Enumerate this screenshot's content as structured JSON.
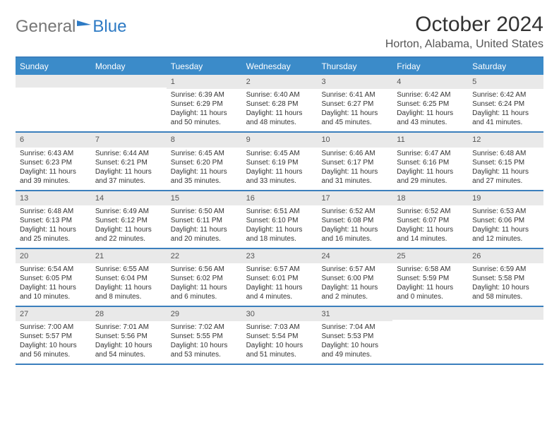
{
  "brand": {
    "part1": "General",
    "part2": "Blue"
  },
  "title": "October 2024",
  "location": "Horton, Alabama, United States",
  "colors": {
    "header_bg": "#3b8bc9",
    "header_text": "#ffffff",
    "border": "#3b7fbd",
    "daynum_bg": "#e9e9e9",
    "text": "#333333"
  },
  "day_headers": [
    "Sunday",
    "Monday",
    "Tuesday",
    "Wednesday",
    "Thursday",
    "Friday",
    "Saturday"
  ],
  "weeks": [
    [
      {
        "num": "",
        "sunrise": "",
        "sunset": "",
        "daylight": ""
      },
      {
        "num": "",
        "sunrise": "",
        "sunset": "",
        "daylight": ""
      },
      {
        "num": "1",
        "sunrise": "Sunrise: 6:39 AM",
        "sunset": "Sunset: 6:29 PM",
        "daylight": "Daylight: 11 hours and 50 minutes."
      },
      {
        "num": "2",
        "sunrise": "Sunrise: 6:40 AM",
        "sunset": "Sunset: 6:28 PM",
        "daylight": "Daylight: 11 hours and 48 minutes."
      },
      {
        "num": "3",
        "sunrise": "Sunrise: 6:41 AM",
        "sunset": "Sunset: 6:27 PM",
        "daylight": "Daylight: 11 hours and 45 minutes."
      },
      {
        "num": "4",
        "sunrise": "Sunrise: 6:42 AM",
        "sunset": "Sunset: 6:25 PM",
        "daylight": "Daylight: 11 hours and 43 minutes."
      },
      {
        "num": "5",
        "sunrise": "Sunrise: 6:42 AM",
        "sunset": "Sunset: 6:24 PM",
        "daylight": "Daylight: 11 hours and 41 minutes."
      }
    ],
    [
      {
        "num": "6",
        "sunrise": "Sunrise: 6:43 AM",
        "sunset": "Sunset: 6:23 PM",
        "daylight": "Daylight: 11 hours and 39 minutes."
      },
      {
        "num": "7",
        "sunrise": "Sunrise: 6:44 AM",
        "sunset": "Sunset: 6:21 PM",
        "daylight": "Daylight: 11 hours and 37 minutes."
      },
      {
        "num": "8",
        "sunrise": "Sunrise: 6:45 AM",
        "sunset": "Sunset: 6:20 PM",
        "daylight": "Daylight: 11 hours and 35 minutes."
      },
      {
        "num": "9",
        "sunrise": "Sunrise: 6:45 AM",
        "sunset": "Sunset: 6:19 PM",
        "daylight": "Daylight: 11 hours and 33 minutes."
      },
      {
        "num": "10",
        "sunrise": "Sunrise: 6:46 AM",
        "sunset": "Sunset: 6:17 PM",
        "daylight": "Daylight: 11 hours and 31 minutes."
      },
      {
        "num": "11",
        "sunrise": "Sunrise: 6:47 AM",
        "sunset": "Sunset: 6:16 PM",
        "daylight": "Daylight: 11 hours and 29 minutes."
      },
      {
        "num": "12",
        "sunrise": "Sunrise: 6:48 AM",
        "sunset": "Sunset: 6:15 PM",
        "daylight": "Daylight: 11 hours and 27 minutes."
      }
    ],
    [
      {
        "num": "13",
        "sunrise": "Sunrise: 6:48 AM",
        "sunset": "Sunset: 6:13 PM",
        "daylight": "Daylight: 11 hours and 25 minutes."
      },
      {
        "num": "14",
        "sunrise": "Sunrise: 6:49 AM",
        "sunset": "Sunset: 6:12 PM",
        "daylight": "Daylight: 11 hours and 22 minutes."
      },
      {
        "num": "15",
        "sunrise": "Sunrise: 6:50 AM",
        "sunset": "Sunset: 6:11 PM",
        "daylight": "Daylight: 11 hours and 20 minutes."
      },
      {
        "num": "16",
        "sunrise": "Sunrise: 6:51 AM",
        "sunset": "Sunset: 6:10 PM",
        "daylight": "Daylight: 11 hours and 18 minutes."
      },
      {
        "num": "17",
        "sunrise": "Sunrise: 6:52 AM",
        "sunset": "Sunset: 6:08 PM",
        "daylight": "Daylight: 11 hours and 16 minutes."
      },
      {
        "num": "18",
        "sunrise": "Sunrise: 6:52 AM",
        "sunset": "Sunset: 6:07 PM",
        "daylight": "Daylight: 11 hours and 14 minutes."
      },
      {
        "num": "19",
        "sunrise": "Sunrise: 6:53 AM",
        "sunset": "Sunset: 6:06 PM",
        "daylight": "Daylight: 11 hours and 12 minutes."
      }
    ],
    [
      {
        "num": "20",
        "sunrise": "Sunrise: 6:54 AM",
        "sunset": "Sunset: 6:05 PM",
        "daylight": "Daylight: 11 hours and 10 minutes."
      },
      {
        "num": "21",
        "sunrise": "Sunrise: 6:55 AM",
        "sunset": "Sunset: 6:04 PM",
        "daylight": "Daylight: 11 hours and 8 minutes."
      },
      {
        "num": "22",
        "sunrise": "Sunrise: 6:56 AM",
        "sunset": "Sunset: 6:02 PM",
        "daylight": "Daylight: 11 hours and 6 minutes."
      },
      {
        "num": "23",
        "sunrise": "Sunrise: 6:57 AM",
        "sunset": "Sunset: 6:01 PM",
        "daylight": "Daylight: 11 hours and 4 minutes."
      },
      {
        "num": "24",
        "sunrise": "Sunrise: 6:57 AM",
        "sunset": "Sunset: 6:00 PM",
        "daylight": "Daylight: 11 hours and 2 minutes."
      },
      {
        "num": "25",
        "sunrise": "Sunrise: 6:58 AM",
        "sunset": "Sunset: 5:59 PM",
        "daylight": "Daylight: 11 hours and 0 minutes."
      },
      {
        "num": "26",
        "sunrise": "Sunrise: 6:59 AM",
        "sunset": "Sunset: 5:58 PM",
        "daylight": "Daylight: 10 hours and 58 minutes."
      }
    ],
    [
      {
        "num": "27",
        "sunrise": "Sunrise: 7:00 AM",
        "sunset": "Sunset: 5:57 PM",
        "daylight": "Daylight: 10 hours and 56 minutes."
      },
      {
        "num": "28",
        "sunrise": "Sunrise: 7:01 AM",
        "sunset": "Sunset: 5:56 PM",
        "daylight": "Daylight: 10 hours and 54 minutes."
      },
      {
        "num": "29",
        "sunrise": "Sunrise: 7:02 AM",
        "sunset": "Sunset: 5:55 PM",
        "daylight": "Daylight: 10 hours and 53 minutes."
      },
      {
        "num": "30",
        "sunrise": "Sunrise: 7:03 AM",
        "sunset": "Sunset: 5:54 PM",
        "daylight": "Daylight: 10 hours and 51 minutes."
      },
      {
        "num": "31",
        "sunrise": "Sunrise: 7:04 AM",
        "sunset": "Sunset: 5:53 PM",
        "daylight": "Daylight: 10 hours and 49 minutes."
      },
      {
        "num": "",
        "sunrise": "",
        "sunset": "",
        "daylight": ""
      },
      {
        "num": "",
        "sunrise": "",
        "sunset": "",
        "daylight": ""
      }
    ]
  ]
}
